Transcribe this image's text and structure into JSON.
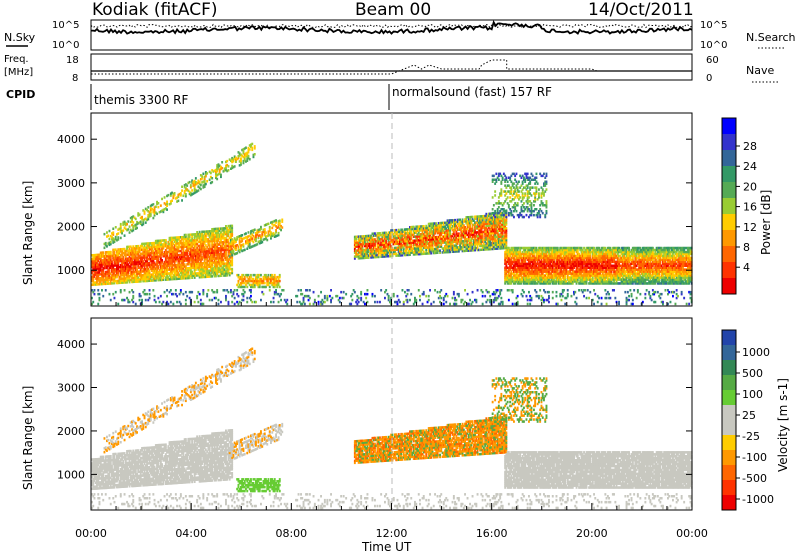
{
  "header": {
    "title_left": "Kodiak (fitACF)",
    "title_center": "Beam 00",
    "title_right": "14/Oct/2011"
  },
  "panel_nsky": {
    "label_left": "N.Sky",
    "label_right": "N.Search",
    "tick_top": "10^5",
    "tick_bottom": "10^0"
  },
  "panel_freq": {
    "label_left_1": "Freq.",
    "label_left_2": "[MHz]",
    "tick_left_top": "18",
    "tick_left_bottom": "8",
    "tick_right_top": "60",
    "tick_right_bottom": "0",
    "label_right": "Nave"
  },
  "panel_cpid": {
    "label": "CPID",
    "mode_1": "themis 3300 RF",
    "mode_2": "normalsound (fast) 157 RF"
  },
  "colorbar_power": {
    "label": "Power [dB]",
    "ticks": [
      "28",
      "24",
      "20",
      "16",
      "12",
      "8",
      "4"
    ],
    "colors": [
      "#ee0000",
      "#ff3300",
      "#ff6600",
      "#ff9900",
      "#ffcc00",
      "#99cc33",
      "#55aa55",
      "#339966",
      "#336699",
      "#3333cc",
      "#0000ff"
    ]
  },
  "colorbar_velocity": {
    "label": "Velocity [m s-1]",
    "ticks": [
      "1000",
      "500",
      "100",
      "25",
      "-25",
      "-100",
      "-500",
      "-1000"
    ],
    "colors": [
      "#2244aa",
      "#336699",
      "#338855",
      "#55aa44",
      "#66cc33",
      "#c8c8c0",
      "#c8c8c0",
      "#ffcc00",
      "#ff9900",
      "#ff6600",
      "#ff3300",
      "#ee0000"
    ]
  },
  "chart_data": [
    {
      "type": "heatmap",
      "name": "power",
      "xlabel": "",
      "ylabel": "Slant Range [km]",
      "xlim_hours": [
        0,
        24
      ],
      "ylim": [
        180,
        4600
      ],
      "yticks": [
        "1000",
        "2000",
        "3000",
        "4000"
      ],
      "colorbar": "Power [dB]",
      "regions": [
        {
          "t0": 0.0,
          "t1": 5.5,
          "r0": 700,
          "r1": 1500,
          "level": "high"
        },
        {
          "t0": 5.0,
          "t1": 7.5,
          "r0": 600,
          "r1": 1800,
          "level": "medium"
        },
        {
          "t0": 10.5,
          "t1": 16.5,
          "r0": 1200,
          "r1": 2100,
          "level": "high"
        },
        {
          "t0": 16.5,
          "t1": 24.0,
          "r0": 700,
          "r1": 1700,
          "level": "high"
        }
      ]
    },
    {
      "type": "heatmap",
      "name": "velocity",
      "xlabel": "Time UT",
      "ylabel": "Slant Range [km]",
      "xlim_hours": [
        0,
        24
      ],
      "ylim": [
        180,
        4600
      ],
      "xticks": [
        "00:00",
        "04:00",
        "08:00",
        "12:00",
        "16:00",
        "20:00",
        "00:00"
      ],
      "yticks": [
        "1000",
        "2000",
        "3000",
        "4000"
      ],
      "colorbar": "Velocity [m s-1]"
    }
  ],
  "axis": {
    "xlabel": "Time UT",
    "xticks": [
      "00:00",
      "04:00",
      "08:00",
      "12:00",
      "16:00",
      "20:00",
      "00:00"
    ],
    "ylabel": "Slant Range [km]",
    "yticks": [
      "1000",
      "2000",
      "3000",
      "4000"
    ]
  }
}
